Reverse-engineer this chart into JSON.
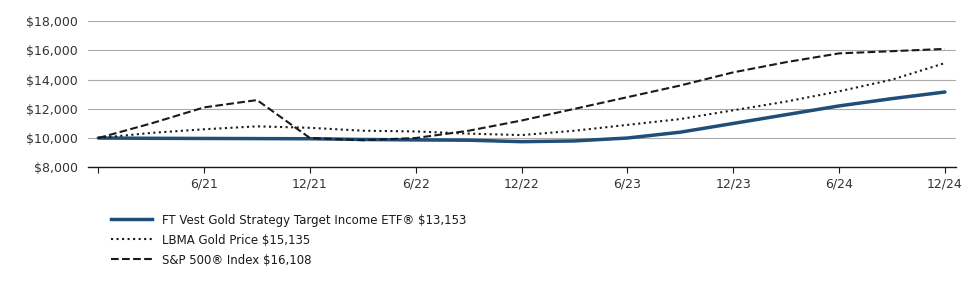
{
  "title": "",
  "x_labels": [
    "",
    "6/21",
    "12/21",
    "6/22",
    "12/22",
    "6/23",
    "12/23",
    "6/24",
    "12/24"
  ],
  "x_positions": [
    0,
    1,
    2,
    3,
    4,
    5,
    6,
    7,
    8
  ],
  "ylim": [
    8000,
    18000
  ],
  "yticks": [
    8000,
    10000,
    12000,
    14000,
    16000,
    18000
  ],
  "etf_x": [
    0,
    0.5,
    1,
    1.5,
    2,
    2.5,
    3,
    3.5,
    4,
    4.5,
    5,
    5.5,
    6,
    6.5,
    7,
    7.5,
    8
  ],
  "etf_y": [
    10000,
    9980,
    9970,
    9960,
    9950,
    9900,
    9870,
    9850,
    9750,
    9800,
    10000,
    10400,
    11000,
    11600,
    12200,
    12700,
    13153
  ],
  "gold_x": [
    0,
    0.5,
    1,
    1.5,
    2,
    2.5,
    3,
    3.5,
    4,
    4.5,
    5,
    5.5,
    6,
    6.5,
    7,
    7.5,
    8
  ],
  "gold_y": [
    10000,
    10350,
    10600,
    10800,
    10700,
    10500,
    10450,
    10300,
    10200,
    10500,
    10900,
    11300,
    11900,
    12500,
    13200,
    14000,
    15135
  ],
  "sp500_x": [
    0,
    0.5,
    1,
    1.5,
    2,
    2.5,
    3,
    3.5,
    4,
    4.5,
    5,
    5.5,
    6,
    6.5,
    7,
    7.5,
    8
  ],
  "sp500_y": [
    10000,
    11000,
    12100,
    12600,
    10000,
    9850,
    10000,
    10500,
    11200,
    12000,
    12800,
    13600,
    14500,
    15200,
    15800,
    15950,
    16108
  ],
  "legend_etf_label": "FT Vest Gold Strategy Target Income ETF® $13,153",
  "legend_gold_label": "LBMA Gold Price $15,135",
  "legend_sp500_label": "S&P 500® Index $16,108",
  "background_color": "#ffffff",
  "grid_color": "#aaaaaa",
  "tick_color": "#333333",
  "etf_color": "#1f4e79",
  "dark_color": "#1a1a1a"
}
